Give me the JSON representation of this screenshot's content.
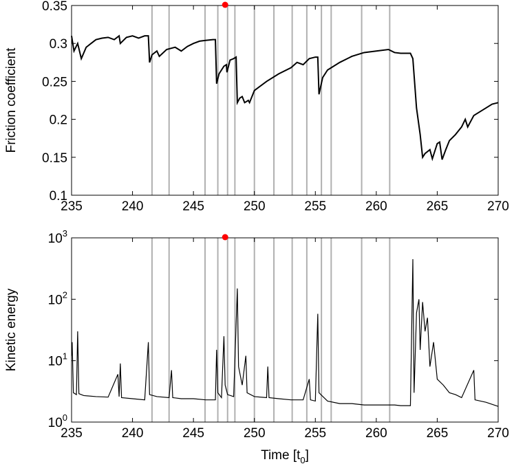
{
  "chart_data": [
    {
      "type": "line",
      "y_label": "Friction coefficient",
      "xlim": [
        235,
        270
      ],
      "xticks": [
        235,
        240,
        245,
        250,
        255,
        260,
        265,
        270
      ],
      "ylim": [
        0.1,
        0.35
      ],
      "yticks": [
        0.1,
        0.15,
        0.2,
        0.25,
        0.3,
        0.35
      ],
      "vlines": [
        241.6,
        243.0,
        245.95,
        247.0,
        247.8,
        248.4,
        250.0,
        251.6,
        253.1,
        254.3,
        255.5,
        256.3,
        258.8,
        261.1
      ],
      "vline_color": "#b0b0b0",
      "marker_x": 247.6,
      "marker_color": "#ff0000",
      "x": [
        235,
        235.2,
        235.5,
        235.8,
        236.2,
        236.6,
        237,
        237.5,
        238,
        238.5,
        238.9,
        239,
        239.5,
        240,
        240.5,
        241,
        241.3,
        241.4,
        241.6,
        242,
        242.2,
        242.8,
        243.5,
        244,
        244.5,
        245,
        245.5,
        246,
        246.6,
        246.8,
        246.9,
        247.1,
        247.5,
        247.7,
        247.75,
        248,
        248.3,
        248.5,
        248.6,
        248.8,
        249,
        249.2,
        249.5,
        249.6,
        250,
        251,
        252,
        253,
        253.5,
        254,
        254.5,
        255,
        255.2,
        255.3,
        255.6,
        256,
        257,
        258,
        259,
        260,
        261,
        261.5,
        262,
        262.8,
        263,
        263.3,
        263.6,
        263.8,
        264,
        264.4,
        264.6,
        265,
        265.2,
        265.4,
        265.7,
        266,
        266.5,
        267,
        267.3,
        267.5,
        268,
        268.5,
        269,
        269.5,
        270
      ],
      "series": [
        {
          "color": "#000000",
          "values": [
            0.31,
            0.29,
            0.3,
            0.28,
            0.295,
            0.3,
            0.305,
            0.307,
            0.308,
            0.305,
            0.31,
            0.3,
            0.308,
            0.31,
            0.307,
            0.31,
            0.31,
            0.275,
            0.285,
            0.29,
            0.283,
            0.292,
            0.295,
            0.29,
            0.296,
            0.3,
            0.303,
            0.304,
            0.305,
            0.305,
            0.247,
            0.26,
            0.27,
            0.272,
            0.262,
            0.278,
            0.28,
            0.282,
            0.222,
            0.228,
            0.23,
            0.222,
            0.225,
            0.222,
            0.238,
            0.25,
            0.26,
            0.268,
            0.275,
            0.272,
            0.28,
            0.282,
            0.282,
            0.233,
            0.255,
            0.265,
            0.275,
            0.283,
            0.288,
            0.29,
            0.292,
            0.288,
            0.287,
            0.287,
            0.28,
            0.215,
            0.18,
            0.15,
            0.155,
            0.16,
            0.148,
            0.168,
            0.17,
            0.147,
            0.16,
            0.172,
            0.18,
            0.19,
            0.2,
            0.19,
            0.205,
            0.21,
            0.215,
            0.22,
            0.222
          ]
        }
      ]
    },
    {
      "type": "line",
      "y_label": "Kinetic energy",
      "x_label": "Time [t_0]",
      "log_scale": true,
      "xlim": [
        235,
        270
      ],
      "xticks": [
        235,
        240,
        245,
        250,
        255,
        260,
        265,
        270
      ],
      "ylim": [
        1,
        1000
      ],
      "yticks": [
        {
          "value": 1,
          "label": "10^0"
        },
        {
          "value": 10,
          "label": "10^1"
        },
        {
          "value": 100,
          "label": "10^2"
        },
        {
          "value": 1000,
          "label": "10^3"
        }
      ],
      "vlines": [
        241.6,
        243.0,
        245.95,
        247.0,
        247.8,
        248.4,
        250.0,
        251.6,
        253.1,
        254.3,
        255.5,
        256.3,
        258.8,
        261.1
      ],
      "vline_color": "#b0b0b0",
      "marker_x": 247.6,
      "marker_color": "#ff0000",
      "x": [
        235,
        235.05,
        235.15,
        235.4,
        235.5,
        235.6,
        236,
        237,
        238,
        238.8,
        238.9,
        239,
        239.1,
        240,
        241,
        241.3,
        241.4,
        242,
        243,
        243.2,
        243.3,
        244,
        245,
        246,
        246.8,
        246.9,
        247,
        247.3,
        247.5,
        247.6,
        247.8,
        248.3,
        248.6,
        248.7,
        249,
        249.3,
        249.4,
        250,
        251,
        251.1,
        251.2,
        252,
        253,
        254,
        254.5,
        254.6,
        255,
        255.2,
        255.3,
        256,
        257,
        258,
        259,
        260,
        261,
        261.5,
        262,
        262.8,
        263,
        263.1,
        263.3,
        263.5,
        263.6,
        263.8,
        264,
        264.2,
        264.4,
        264.7,
        265,
        265.5,
        266,
        266.5,
        267,
        268,
        268.1,
        269,
        270
      ],
      "series": [
        {
          "color": "#000000",
          "values": [
            12,
            20,
            3,
            2.8,
            30,
            2.9,
            2.7,
            2.6,
            2.55,
            6,
            2.6,
            9,
            2.5,
            2.4,
            2.3,
            20,
            2.8,
            2.6,
            2.5,
            7,
            2.5,
            2.4,
            2.4,
            2.3,
            2.3,
            15,
            3,
            2.5,
            25,
            4,
            2.8,
            2.6,
            150,
            8,
            4,
            12,
            3,
            2.6,
            2.5,
            8,
            2.5,
            2.4,
            2.3,
            2.3,
            5,
            2.3,
            2.2,
            58,
            3,
            2.2,
            2,
            2,
            1.9,
            1.9,
            1.9,
            1.9,
            1.85,
            1.85,
            450,
            3,
            60,
            100,
            15,
            90,
            30,
            50,
            8,
            20,
            5,
            4,
            3,
            2.8,
            2.5,
            7,
            2.3,
            2.1,
            1.8
          ]
        }
      ]
    }
  ]
}
